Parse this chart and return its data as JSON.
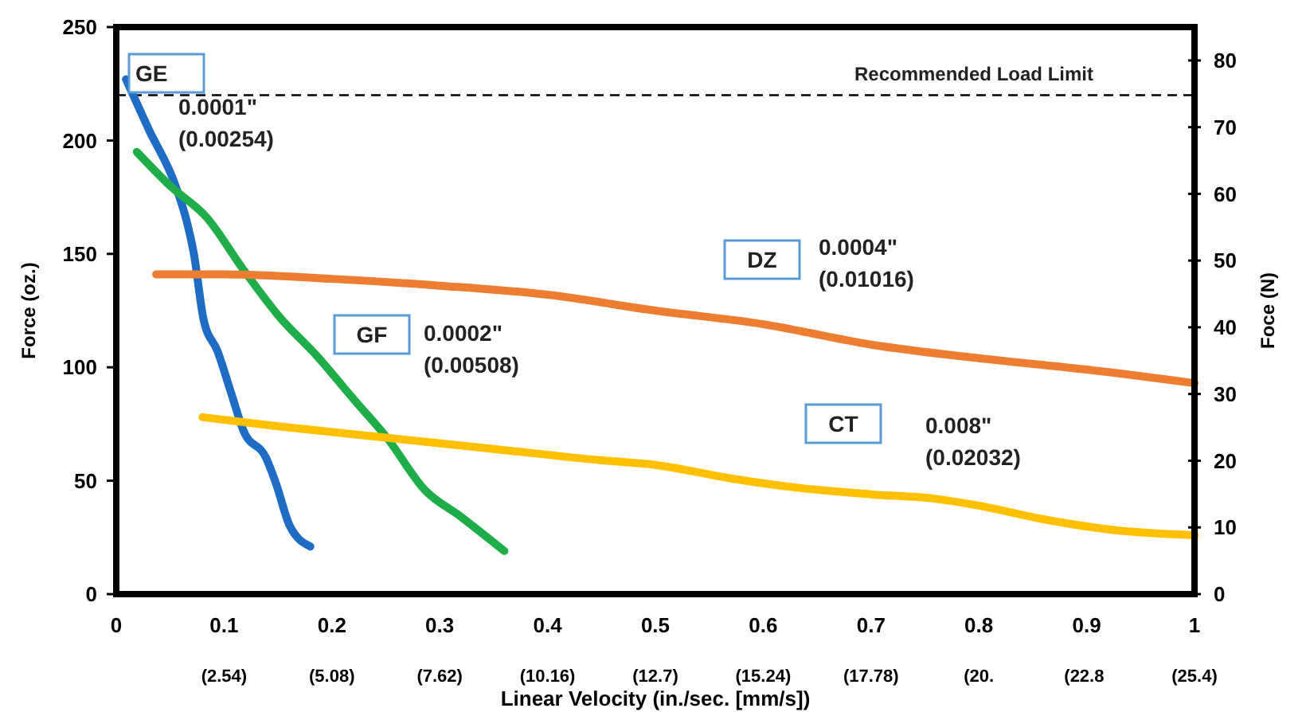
{
  "chart_data": {
    "type": "line",
    "xlabel": "Linear Velocity (in./sec. [mm/s])",
    "ylabel": "Force (oz.)",
    "y2label": "Foce (N)",
    "xlim": [
      0,
      1
    ],
    "xticks": [
      0,
      0.1,
      0.2,
      0.3,
      0.4,
      0.5,
      0.6,
      0.7,
      0.8,
      0.9,
      1
    ],
    "x2lim": [
      0,
      25.4
    ],
    "x2ticks": [
      {
        "value": 2.54,
        "label": "(2.54)"
      },
      {
        "value": 5.08,
        "label": "(5.08)"
      },
      {
        "value": 7.62,
        "label": "(7.62)"
      },
      {
        "value": 10.16,
        "label": "(10.16)"
      },
      {
        "value": 12.7,
        "label": "(12.7)"
      },
      {
        "value": 15.24,
        "label": "(15.24)"
      },
      {
        "value": 17.78,
        "label": "(17.78)"
      },
      {
        "value": 20.32,
        "label": "(20."
      },
      {
        "value": 22.8,
        "label": "(22.8"
      },
      {
        "value": 25.4,
        "label": "(25.4)"
      }
    ],
    "ylim": [
      0,
      250
    ],
    "yticks": [
      0,
      50,
      100,
      150,
      200,
      250
    ],
    "y2lim": [
      0,
      85
    ],
    "y2ticks": [
      0,
      10,
      20,
      30,
      40,
      50,
      60,
      70,
      80
    ],
    "grid": false,
    "line_style": "solid",
    "marker": "none",
    "ref_lines": [
      {
        "axis": "y",
        "value": 220,
        "label": "Recommended Load Limit",
        "color": "#000000",
        "line_style": "dashed"
      }
    ],
    "annotations": [
      "0.0001\"\n(0.00254)",
      "0.0002\"\n(0.00508)",
      "0.0004\"\n(0.01016)",
      "0.008\"\n(0.02032)"
    ],
    "series": [
      {
        "name": "GE",
        "color": "#1f6cc4",
        "x": [
          0.009,
          0.03,
          0.055,
          0.065,
          0.072,
          0.081,
          0.094,
          0.107,
          0.118,
          0.139,
          0.148,
          0.161,
          0.18
        ],
        "values": [
          227,
          205,
          180,
          165,
          150,
          121,
          107,
          88,
          72,
          60,
          49,
          30,
          21
        ]
      },
      {
        "name": "GF",
        "color": "#1fad4a",
        "x": [
          0.019,
          0.05,
          0.084,
          0.118,
          0.15,
          0.188,
          0.22,
          0.251,
          0.286,
          0.32,
          0.36
        ],
        "values": [
          195,
          180,
          166,
          143,
          123,
          104,
          86,
          69,
          46,
          34,
          19
        ]
      },
      {
        "name": "DZ",
        "color": "#ed7d31",
        "x": [
          0.037,
          0.1,
          0.2,
          0.3,
          0.4,
          0.5,
          0.6,
          0.7,
          0.8,
          0.9,
          1.0
        ],
        "values": [
          141,
          141,
          139,
          136,
          132,
          125,
          119,
          110,
          104,
          99,
          93
        ]
      },
      {
        "name": "CT",
        "color": "#ffc000",
        "x": [
          0.08,
          0.15,
          0.25,
          0.35,
          0.45,
          0.5,
          0.57,
          0.63,
          0.7,
          0.76,
          0.8,
          0.86,
          0.93,
          1.0
        ],
        "values": [
          78,
          74,
          69,
          64,
          59,
          57,
          51,
          47,
          44,
          42,
          39,
          33,
          28,
          26
        ]
      }
    ]
  }
}
